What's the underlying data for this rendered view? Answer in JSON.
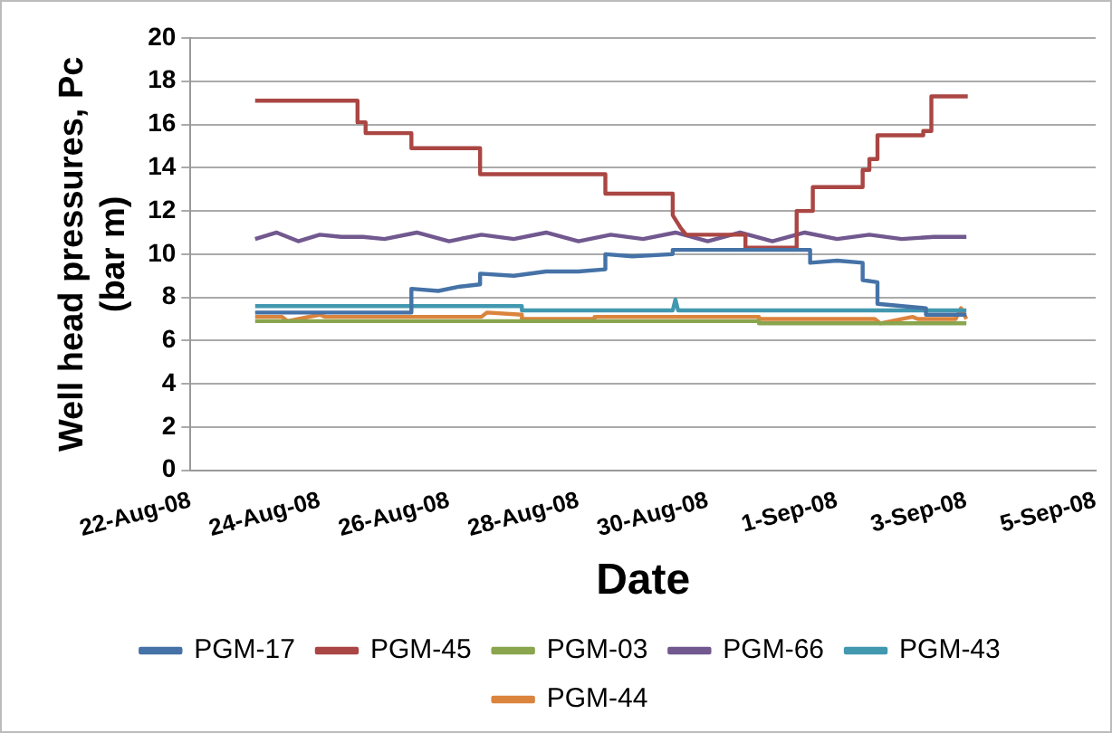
{
  "chart_data": {
    "type": "line",
    "xlabel": "Date",
    "ylabel": "Well head pressures, Pc (bar m)",
    "xlim": [
      "--08-22",
      "--09-05"
    ],
    "xticks": [
      {
        "value": "--08-22",
        "label": "22-Aug-08"
      },
      {
        "value": "--08-24",
        "label": "24-Aug-08"
      },
      {
        "value": "--08-26",
        "label": "26-Aug-08"
      },
      {
        "value": "--08-28",
        "label": "28-Aug-08"
      },
      {
        "value": "--08-30",
        "label": "30-Aug-08"
      },
      {
        "value": "--09-01",
        "label": "1-Sep-08"
      },
      {
        "value": "--09-03",
        "label": "3-Sep-08"
      },
      {
        "value": "--09-05",
        "label": "5-Sep-08"
      }
    ],
    "ylim": [
      0,
      20
    ],
    "yticks": [
      0,
      2,
      4,
      6,
      8,
      10,
      12,
      14,
      16,
      18,
      20
    ],
    "grid": "y",
    "legend": "bottom",
    "marker": "none",
    "line_style": "solid",
    "series": [
      {
        "name": "PGM-17",
        "color": "#4572a7",
        "x": [
          "--08-23T00:00",
          "--08-25T10:00",
          "--08-25T10:00",
          "--08-25T20:00",
          "--08-26T04:00",
          "--08-26T11:30",
          "--08-26T11:30",
          "--08-27T00:00",
          "--08-27T12:00",
          "--08-28T00:00",
          "--08-28T10:00",
          "--08-28T10:00",
          "--08-28T20:00",
          "--08-29T11:00",
          "--08-29T11:00",
          "--08-31T14:00",
          "--08-31T14:00",
          "--09-01T00:00",
          "--09-01T09:30",
          "--09-01T09:30",
          "--09-01T15:00",
          "--09-01T15:00",
          "--09-02T09:00",
          "--09-02T09:00",
          "--09-03T00:00"
        ],
        "values": [
          7.3,
          7.3,
          8.4,
          8.3,
          8.5,
          8.6,
          9.1,
          9.0,
          9.2,
          9.2,
          9.3,
          10.0,
          9.9,
          10.0,
          10.2,
          10.2,
          9.6,
          9.7,
          9.6,
          8.8,
          8.7,
          7.7,
          7.5,
          7.2,
          7.2
        ]
      },
      {
        "name": "PGM-45",
        "color": "#aa4643",
        "x": [
          "--08-23T00:00",
          "--08-24T14:00",
          "--08-24T14:00",
          "--08-24T17:00",
          "--08-24T17:00",
          "--08-25T10:00",
          "--08-25T10:00",
          "--08-26T11:30",
          "--08-26T11:30",
          "--08-28T10:00",
          "--08-28T10:00",
          "--08-29T11:00",
          "--08-29T11:00",
          "--08-29T14:00",
          "--08-29T16:00",
          "--08-30T14:00",
          "--08-30T14:00",
          "--08-31T09:00",
          "--08-31T09:00",
          "--08-31T15:00",
          "--08-31T15:00",
          "--09-01T09:30",
          "--09-01T09:30",
          "--09-01T12:00",
          "--09-01T12:00",
          "--09-01T15:00",
          "--09-01T15:00",
          "--09-02T08:00",
          "--09-02T08:00",
          "--09-02T11:00",
          "--09-02T11:00",
          "--09-03T00:30"
        ],
        "values": [
          17.1,
          17.1,
          16.1,
          16.1,
          15.6,
          15.6,
          14.9,
          14.9,
          13.7,
          13.7,
          12.8,
          12.8,
          11.8,
          11.2,
          10.9,
          10.9,
          10.3,
          10.3,
          12.0,
          12.0,
          13.1,
          13.1,
          13.9,
          13.9,
          14.4,
          14.4,
          15.5,
          15.5,
          15.7,
          15.7,
          17.3,
          17.3
        ]
      },
      {
        "name": "PGM-03",
        "color": "#89a54e",
        "x": [
          "--08-23T00:00",
          "--08-30T19:00",
          "--08-30T19:00",
          "--09-03T00:00"
        ],
        "values": [
          6.9,
          6.9,
          6.8,
          6.8
        ]
      },
      {
        "name": "PGM-66",
        "color": "#71588f",
        "x": [
          "--08-23T00:00",
          "--08-23T08:00",
          "--08-23T16:00",
          "--08-24T00:00",
          "--08-24T08:00",
          "--08-24T16:00",
          "--08-25T00:00",
          "--08-25T12:00",
          "--08-26T00:00",
          "--08-26T12:00",
          "--08-27T00:00",
          "--08-27T12:00",
          "--08-28T00:00",
          "--08-28T12:00",
          "--08-29T00:00",
          "--08-29T12:00",
          "--08-30T00:00",
          "--08-30T12:00",
          "--08-31T00:00",
          "--08-31T12:00",
          "--09-01T00:00",
          "--09-01T12:00",
          "--09-02T00:00",
          "--09-02T12:00",
          "--09-03T00:00"
        ],
        "values": [
          10.7,
          11.0,
          10.6,
          10.9,
          10.8,
          10.8,
          10.7,
          11.0,
          10.6,
          10.9,
          10.7,
          11.0,
          10.6,
          10.9,
          10.7,
          11.0,
          10.6,
          11.0,
          10.6,
          11.0,
          10.7,
          10.9,
          10.7,
          10.8,
          10.8
        ]
      },
      {
        "name": "PGM-43",
        "color": "#4198af",
        "x": [
          "--08-23T00:00",
          "--08-27T03:00",
          "--08-27T03:00",
          "--08-29T11:00",
          "--08-29T12:00",
          "--08-29T13:00",
          "--09-03T00:00"
        ],
        "values": [
          7.6,
          7.6,
          7.4,
          7.4,
          7.9,
          7.4,
          7.4
        ]
      },
      {
        "name": "PGM-44",
        "color": "#db843d",
        "x": [
          "--08-23T00:00",
          "--08-23T10:00",
          "--08-23T12:00",
          "--08-24T00:00",
          "--08-24T02:00",
          "--08-26T12:00",
          "--08-26T14:00",
          "--08-27T03:00",
          "--08-27T03:00",
          "--08-28T06:00",
          "--08-28T06:00",
          "--08-30T19:00",
          "--08-30T19:00",
          "--09-01T14:00",
          "--09-01T16:00",
          "--09-02T04:00",
          "--09-02T06:00",
          "--09-02T20:00",
          "--09-02T22:00",
          "--09-03T00:00"
        ],
        "values": [
          7.1,
          7.1,
          6.9,
          7.2,
          7.1,
          7.1,
          7.3,
          7.2,
          7.0,
          7.0,
          7.1,
          7.1,
          7.0,
          7.0,
          6.8,
          7.1,
          7.0,
          7.0,
          7.5,
          7.0
        ]
      }
    ]
  }
}
